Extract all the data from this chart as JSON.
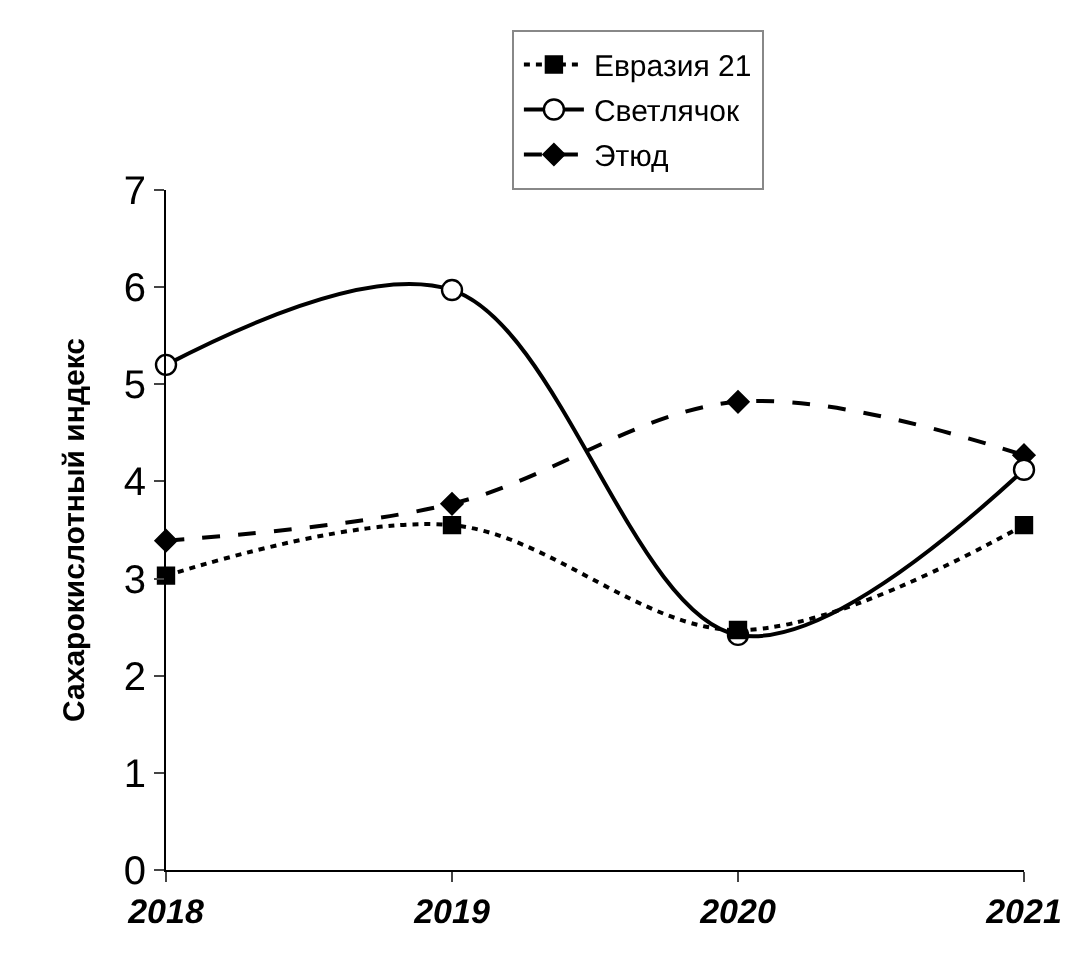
{
  "chart_data": {
    "type": "line",
    "ylabel": "Сахарокислотный индекс",
    "categories": [
      "2018",
      "2019",
      "2020",
      "2021"
    ],
    "series": [
      {
        "name": "Евразия 21",
        "color": "#000000",
        "values": [
          3.03,
          3.55,
          2.47,
          3.55
        ],
        "marker": "square",
        "line_style": "dotted"
      },
      {
        "name": "Светлячок",
        "color": "#000000",
        "values": [
          5.2,
          5.97,
          2.42,
          4.12
        ],
        "marker": "circle",
        "line_style": "solid"
      },
      {
        "name": "Этюд",
        "color": "#000000",
        "values": [
          3.39,
          3.77,
          4.82,
          4.27
        ],
        "marker": "diamond",
        "line_style": "dashed"
      }
    ],
    "ylim": [
      0,
      7
    ],
    "yticks": [
      0,
      1,
      2,
      3,
      4,
      5,
      6,
      7
    ],
    "legend": "top"
  }
}
